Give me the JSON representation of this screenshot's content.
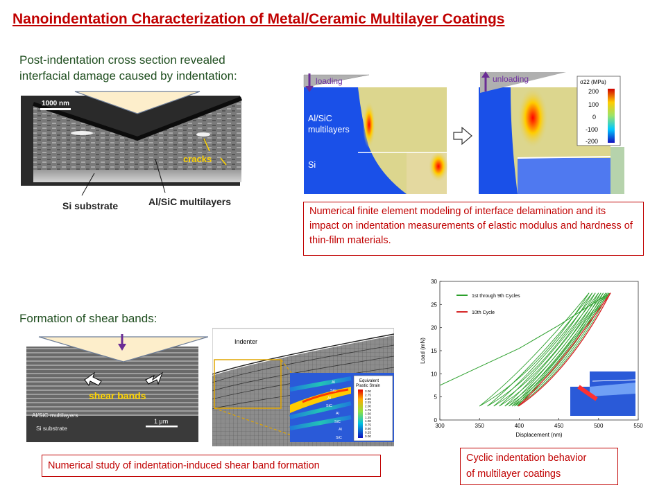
{
  "title": "Nanoindentation Characterization of Metal/Ceramic Multilayer Coatings",
  "cross_section": {
    "caption_line1": "Post-indentation cross section revealed",
    "caption_line2": "interfacial damage caused by indentation:",
    "scale_bar": "1000 nm",
    "cracks_label": "cracks",
    "substrate_label": "Si substrate",
    "multilayer_label": "Al/SiC multilayers"
  },
  "fem": {
    "loading_label": "loading",
    "unloading_label": "unloading",
    "material_line1": "Al/SiC",
    "material_line2": "multilayers",
    "si_label": "Si",
    "colorbar_title": "σ22 (MPa)",
    "colorbar_ticks": [
      "200",
      "100",
      "0",
      "-100",
      "-200"
    ],
    "caption": "Numerical finite element modeling of interface delamination and its impact on indentation measurements of elastic modulus and hardness of thin-film materials."
  },
  "shear": {
    "caption": "Formation of shear bands:",
    "bands_label": "shear bands",
    "multilayer_label": "Al/SiC multilayers",
    "substrate_label": "Si substrate",
    "scale_bar": "1 μm",
    "indenter_label": "Indenter",
    "legend_title_line1": "Equivalent",
    "legend_title_line2": "Plastic Strain",
    "legend_values": [
      "3.00",
      "2.75",
      "2.50",
      "2.25",
      "2.00",
      "1.75",
      "1.50",
      "1.25",
      "1.00",
      "0.75",
      "0.50",
      "0.25",
      "0.00"
    ],
    "layer_labels": [
      "Al",
      "SiC",
      "Al",
      "SiC",
      "Al",
      "SiC",
      "Al",
      "SiC"
    ],
    "study_caption": "Numerical study of indentation-induced shear band formation"
  },
  "cyclic": {
    "caption_line1": "Cyclic indentation behavior",
    "caption_line2": "of multilayer coatings"
  },
  "chart_data": {
    "type": "line",
    "xlabel": "Displacement (nm)",
    "ylabel": "Load (mN)",
    "xlim": [
      300,
      550
    ],
    "ylim": [
      0,
      30
    ],
    "xticks": [
      "300",
      "350",
      "400",
      "450",
      "500",
      "550"
    ],
    "yticks": [
      "0",
      "5",
      "10",
      "15",
      "20",
      "25",
      "30"
    ],
    "legend_placement": "top-left",
    "colors": {
      "cycles_1_9": "#2ca02c",
      "cycle_10": "#d62728"
    },
    "series": [
      {
        "name": "1st through 9th Cycles",
        "color": "#2ca02c",
        "loading_curve": {
          "x": [
            300,
            350,
            400,
            450,
            500,
            515
          ],
          "y": [
            7.5,
            11.5,
            15.5,
            20.5,
            26,
            27.5
          ]
        },
        "cycles": [
          {
            "start_x": 350,
            "start_y": 3,
            "peak_x": 488,
            "peak_y": 27.5,
            "end_x": 350,
            "end_y": 3
          },
          {
            "start_x": 360,
            "start_y": 3,
            "peak_x": 492,
            "peak_y": 27.5,
            "end_x": 360,
            "end_y": 3
          },
          {
            "start_x": 368,
            "start_y": 3,
            "peak_x": 496,
            "peak_y": 27.5,
            "end_x": 368,
            "end_y": 3
          },
          {
            "start_x": 375,
            "start_y": 3,
            "peak_x": 500,
            "peak_y": 27.5,
            "end_x": 375,
            "end_y": 3
          },
          {
            "start_x": 382,
            "start_y": 3,
            "peak_x": 503,
            "peak_y": 27.5,
            "end_x": 382,
            "end_y": 3
          },
          {
            "start_x": 387,
            "start_y": 3,
            "peak_x": 506,
            "peak_y": 27.5,
            "end_x": 387,
            "end_y": 3
          },
          {
            "start_x": 391,
            "start_y": 3,
            "peak_x": 509,
            "peak_y": 27.5,
            "end_x": 391,
            "end_y": 3
          },
          {
            "start_x": 394,
            "start_y": 3,
            "peak_x": 511,
            "peak_y": 27.5,
            "end_x": 394,
            "end_y": 3
          },
          {
            "start_x": 397,
            "start_y": 3,
            "peak_x": 513,
            "peak_y": 27.5,
            "end_x": 397,
            "end_y": 3
          }
        ]
      },
      {
        "name": "10th Cycle",
        "color": "#d62728",
        "cycles": [
          {
            "start_x": 399,
            "start_y": 3,
            "peak_x": 515,
            "peak_y": 27.5,
            "end_x": 399,
            "end_y": 3
          }
        ]
      }
    ]
  }
}
